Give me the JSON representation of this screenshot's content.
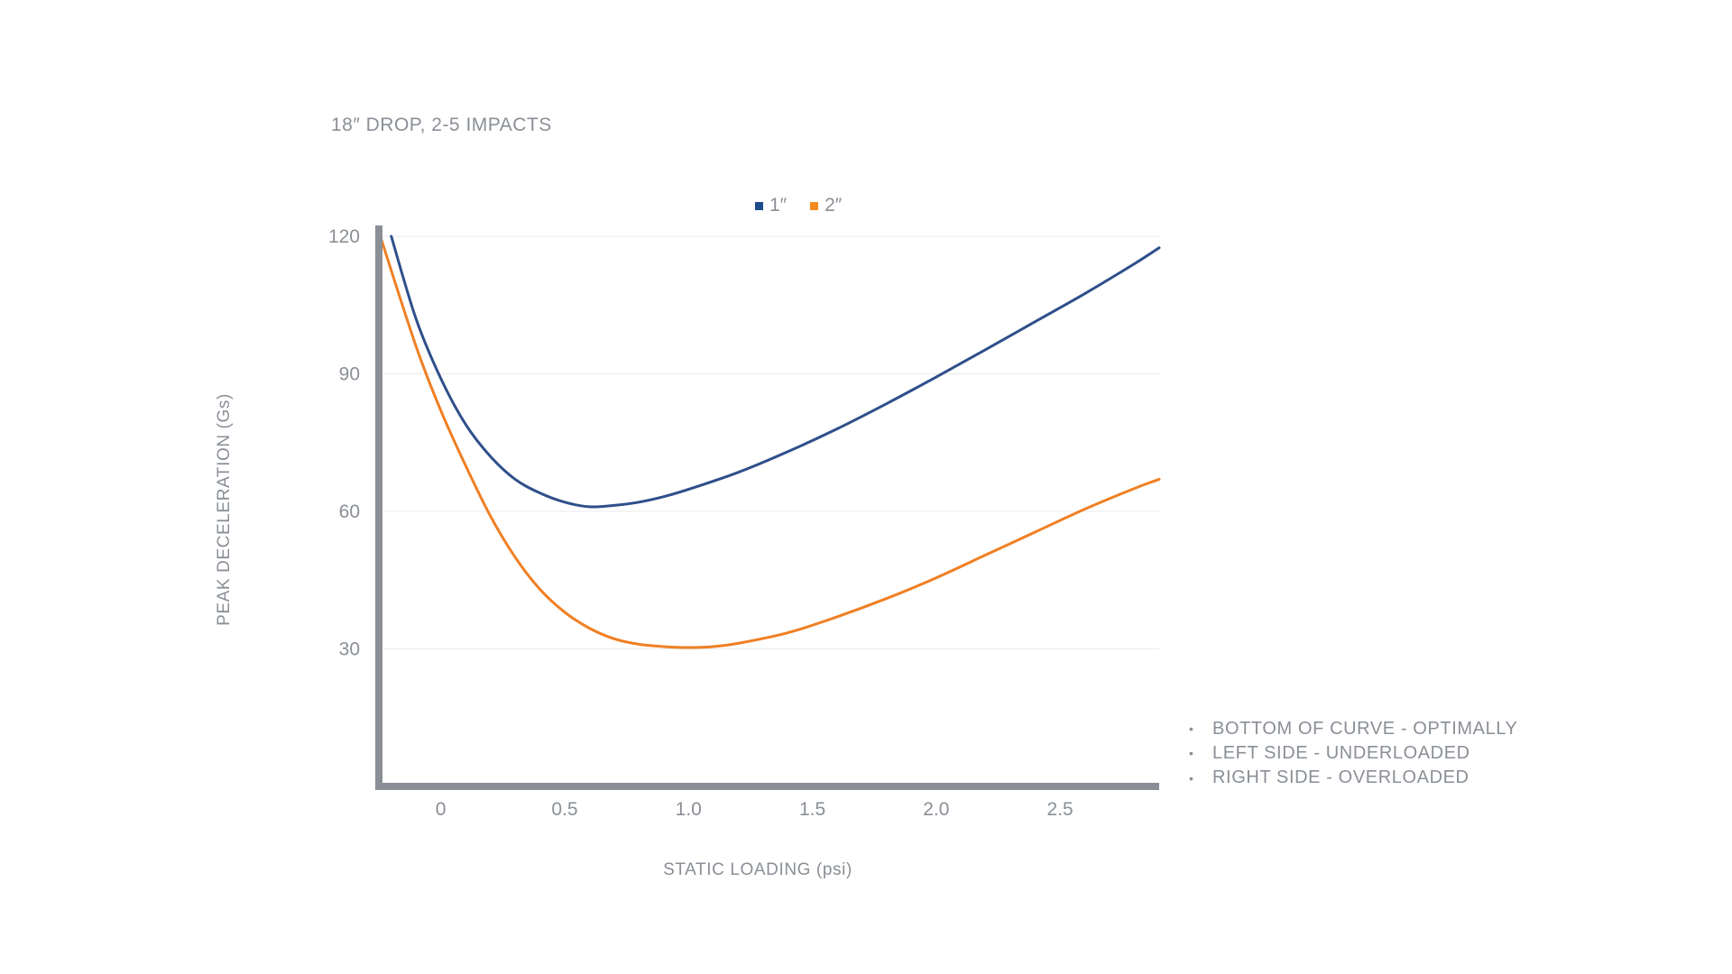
{
  "chart_data": {
    "type": "line",
    "title": "18″ DROP, 2-5 IMPACTS",
    "xlabel": "STATIC LOADING (psi)",
    "ylabel": "PEAK DECELERATION (Gs)",
    "xlim": [
      -0.25,
      2.9
    ],
    "ylim": [
      0,
      120
    ],
    "x_ticks": [
      "0",
      "0.5",
      "1.0",
      "1.5",
      "2.0",
      "2.5"
    ],
    "x_tick_values": [
      0,
      0.5,
      1.0,
      1.5,
      2.0,
      2.5
    ],
    "y_ticks": [
      "30",
      "60",
      "90",
      "120"
    ],
    "y_tick_values": [
      30,
      60,
      90,
      120
    ],
    "grid": "horizontal",
    "legend_position": "top-center",
    "series": [
      {
        "name": "1″",
        "color": "#2e4f8a",
        "x": [
          -0.2,
          -0.1,
          0.0,
          0.1,
          0.2,
          0.3,
          0.4,
          0.5,
          0.6,
          0.7,
          0.8,
          0.9,
          1.0,
          1.2,
          1.4,
          1.6,
          1.8,
          2.0,
          2.2,
          2.4,
          2.6,
          2.8,
          2.9
        ],
        "y": [
          120,
          102,
          89,
          79,
          72,
          67,
          64,
          62,
          61,
          61.3,
          62,
          63.2,
          64.8,
          68.5,
          73,
          78,
          83.5,
          89.3,
          95.3,
          101.4,
          107.5,
          114,
          117.5
        ]
      },
      {
        "name": "2″",
        "color": "#f07f23",
        "x": [
          -0.25,
          -0.1,
          0.0,
          0.1,
          0.2,
          0.3,
          0.4,
          0.5,
          0.6,
          0.7,
          0.8,
          0.9,
          1.0,
          1.1,
          1.2,
          1.4,
          1.6,
          1.8,
          2.0,
          2.2,
          2.4,
          2.6,
          2.8,
          2.9
        ],
        "y": [
          121,
          96,
          82,
          70,
          59,
          50,
          43,
          38,
          34.5,
          32.2,
          31,
          30.5,
          30.3,
          30.5,
          31.2,
          33.5,
          37,
          41,
          45.5,
          50.5,
          55.5,
          60.5,
          65,
          67
        ]
      }
    ]
  },
  "notes": [
    "BOTTOM OF CURVE - OPTIMALLY",
    "LEFT SIDE - UNDERLOADED",
    "RIGHT SIDE - OVERLOADED"
  ],
  "colors": {
    "axis": "#8a8f96",
    "grid": "#ebebeb",
    "text": "#8a8f96"
  }
}
